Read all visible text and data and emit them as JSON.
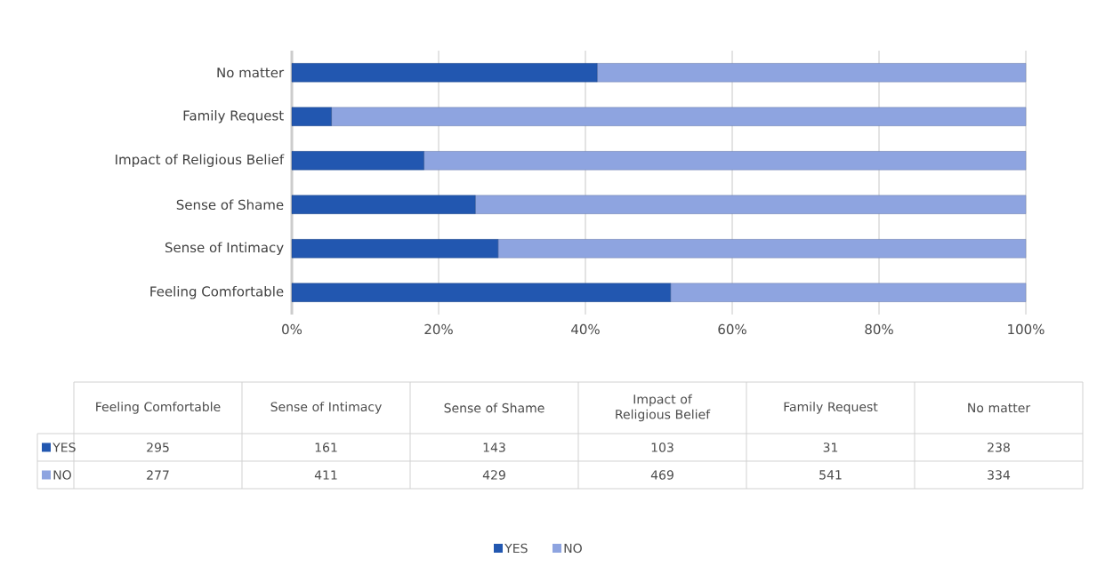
{
  "chart_data": [
    {
      "type": "bar",
      "orientation": "horizontal",
      "stacked": true,
      "categories": [
        "No matter",
        "Family Request",
        "Impact of Religious Belief",
        "Sense of Shame",
        "Sense of Intimacy",
        "Feeling Comfortable"
      ],
      "series": [
        {
          "name": "YES",
          "color": "#2257b0",
          "values": [
            41.6,
            5.4,
            18.0,
            25.0,
            28.1,
            51.6
          ]
        },
        {
          "name": "NO",
          "color": "#8ea4e0",
          "values": [
            58.4,
            94.6,
            82.0,
            75.0,
            71.9,
            48.4
          ]
        }
      ],
      "xlim": [
        0,
        100
      ],
      "xticks": [
        {
          "value": 0,
          "label": "0%"
        },
        {
          "value": 20,
          "label": "20%"
        },
        {
          "value": 40,
          "label": "40%"
        },
        {
          "value": 60,
          "label": "60%"
        },
        {
          "value": 80,
          "label": "80%"
        },
        {
          "value": 100,
          "label": "100%"
        }
      ],
      "grid": "x",
      "legend": "bottom"
    },
    {
      "type": "other",
      "categories": [
        "Feeling Comfortable",
        "Sense of Intimacy",
        "Sense of Shame",
        "Impact of Religious Belief",
        "Family Request",
        "No matter"
      ],
      "series": [
        {
          "name": "YES",
          "color": "#2257b0",
          "values": [
            295,
            161,
            143,
            103,
            31,
            238
          ]
        },
        {
          "name": "NO",
          "color": "#8ea4e0",
          "values": [
            277,
            411,
            429,
            469,
            541,
            334
          ]
        }
      ],
      "data_labels": true
    }
  ]
}
